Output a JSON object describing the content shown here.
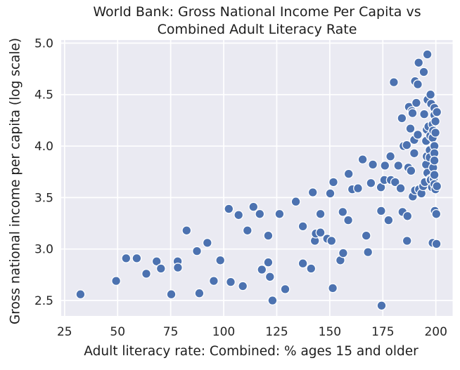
{
  "figure": {
    "title_line1": "World Bank: Gross National Income Per Capita vs",
    "title_line2": "Combined Adult Literacy Rate",
    "xlabel": "Adult literacy rate: Combined: % ages 15 and older",
    "ylabel": "Gross national income per capita (log scale)"
  },
  "chart_data": {
    "type": "scatter",
    "title": "World Bank: Gross National Income Per Capita vs Combined Adult Literacy Rate",
    "xlabel": "Adult literacy rate: Combined: % ages 15 and older",
    "ylabel": "Gross national income per capita (log scale)",
    "xlim": [
      23.4,
      207.9
    ],
    "ylim": [
      2.35,
      5.03
    ],
    "x_ticks": [
      25,
      50,
      75,
      100,
      125,
      150,
      175,
      200
    ],
    "y_ticks": [
      2.5,
      3.0,
      3.5,
      4.0,
      4.5,
      5.0
    ],
    "grid": true,
    "legend": false,
    "styles": {
      "marker_color": "#4c72b0",
      "marker_edge": "#ffffff",
      "plot_bg": "#eaeaf2",
      "grid_color": "#ffffff",
      "text_color": "#262626",
      "fig_bg": "#ffffff"
    },
    "points": [
      [
        32.5,
        2.56
      ],
      [
        49.3,
        2.69
      ],
      [
        54,
        2.91
      ],
      [
        59,
        2.91
      ],
      [
        63.5,
        2.76
      ],
      [
        68.4,
        2.88
      ],
      [
        70.4,
        2.81
      ],
      [
        75.3,
        2.56
      ],
      [
        78.3,
        2.88
      ],
      [
        78.4,
        2.82
      ],
      [
        82.5,
        3.18
      ],
      [
        87.4,
        2.98
      ],
      [
        88.5,
        2.57
      ],
      [
        92.3,
        3.06
      ],
      [
        95.3,
        2.69
      ],
      [
        98.4,
        2.89
      ],
      [
        102.4,
        3.39
      ],
      [
        103.3,
        2.68
      ],
      [
        107,
        3.33
      ],
      [
        109,
        2.64
      ],
      [
        111.2,
        3.18
      ],
      [
        114,
        3.41
      ],
      [
        117,
        3.34
      ],
      [
        118,
        2.8
      ],
      [
        121,
        3.13
      ],
      [
        121,
        2.87
      ],
      [
        121.8,
        2.73
      ],
      [
        123,
        2.5
      ],
      [
        126.3,
        3.34
      ],
      [
        129,
        2.61
      ],
      [
        134,
        3.46
      ],
      [
        137.3,
        3.22
      ],
      [
        137.3,
        2.86
      ],
      [
        141.2,
        2.81
      ],
      [
        142,
        3.55
      ],
      [
        143,
        3.08
      ],
      [
        143.4,
        3.15
      ],
      [
        145.6,
        3.16
      ],
      [
        145.6,
        3.34
      ],
      [
        148.8,
        3.1
      ],
      [
        150.8,
        3.08
      ],
      [
        150.2,
        3.54
      ],
      [
        151.7,
        3.65
      ],
      [
        151.4,
        2.62
      ],
      [
        155,
        2.89
      ],
      [
        156.3,
        2.96
      ],
      [
        156.1,
        3.36
      ],
      [
        158.7,
        3.28
      ],
      [
        158.9,
        3.73
      ],
      [
        160.6,
        3.58
      ],
      [
        163.3,
        3.59
      ],
      [
        165.5,
        3.87
      ],
      [
        167.2,
        3.13
      ],
      [
        168,
        2.97
      ],
      [
        169.4,
        3.64
      ],
      [
        170.3,
        3.82
      ],
      [
        174.1,
        3.6
      ],
      [
        174.2,
        3.37
      ],
      [
        174.4,
        2.45
      ],
      [
        175.7,
        3.67
      ],
      [
        176,
        3.81
      ],
      [
        177.7,
        3.28
      ],
      [
        178.6,
        3.9
      ],
      [
        178.8,
        3.67
      ],
      [
        180.8,
        3.65
      ],
      [
        182.3,
        3.81
      ],
      [
        183.4,
        3.59
      ],
      [
        180.2,
        4.62
      ],
      [
        184,
        4.27
      ],
      [
        184.3,
        3.36
      ],
      [
        184.8,
        4.0
      ],
      [
        186.3,
        4.01
      ],
      [
        186.6,
        3.32
      ],
      [
        186.4,
        3.08
      ],
      [
        187,
        3.79
      ],
      [
        187.3,
        4.38
      ],
      [
        188,
        4.17
      ],
      [
        188.3,
        3.76
      ],
      [
        188.7,
        4.34
      ],
      [
        189,
        4.32
      ],
      [
        189.1,
        3.51
      ],
      [
        189.8,
        4.06
      ],
      [
        189.8,
        3.93
      ],
      [
        190.2,
        4.63
      ],
      [
        190.2,
        3.57
      ],
      [
        190.8,
        4.42
      ],
      [
        191.5,
        4.6
      ],
      [
        191.5,
        4.11
      ],
      [
        191.9,
        4.81
      ],
      [
        192.1,
        3.58
      ],
      [
        193.2,
        3.54
      ],
      [
        194,
        3.61
      ],
      [
        194.3,
        4.72
      ],
      [
        194.5,
        4.31
      ],
      [
        194.8,
        3.65
      ],
      [
        195.4,
        4.05
      ],
      [
        195.4,
        3.82
      ],
      [
        195.7,
        4.16
      ],
      [
        195.7,
        3.9
      ],
      [
        196,
        4.89
      ],
      [
        196,
        3.74
      ],
      [
        196.1,
        4.45
      ],
      [
        196.5,
        4.19
      ],
      [
        197.1,
        3.96
      ],
      [
        197.1,
        3.89
      ],
      [
        197.4,
        4.1
      ],
      [
        197.4,
        3.68
      ],
      [
        197.5,
        4.5
      ],
      [
        197.6,
        3.67
      ],
      [
        197.8,
        4.41
      ],
      [
        198.2,
        3.6
      ],
      [
        198.5,
        4.21
      ],
      [
        198.5,
        4.08
      ],
      [
        198.5,
        3.06
      ],
      [
        198.7,
        4.15
      ],
      [
        198.7,
        3.79
      ],
      [
        199,
        3.68
      ],
      [
        199.3,
        4.37
      ],
      [
        199.3,
        4.3
      ],
      [
        199.3,
        4.0
      ],
      [
        199.3,
        3.93
      ],
      [
        199.3,
        3.86
      ],
      [
        199.3,
        3.72
      ],
      [
        199.3,
        3.63
      ],
      [
        199.5,
        3.37
      ],
      [
        199.8,
        4.24
      ],
      [
        199.8,
        4.13
      ],
      [
        199.8,
        3.58
      ],
      [
        200.2,
        3.34
      ],
      [
        200.3,
        3.05
      ],
      [
        200.5,
        4.33
      ],
      [
        200.5,
        3.61
      ]
    ]
  }
}
